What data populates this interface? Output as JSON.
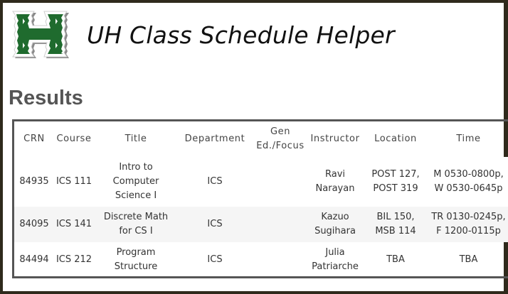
{
  "header": {
    "title": "UH Class Schedule Helper",
    "logo_icon": "hawaii-h-logo",
    "logo_colors": {
      "primary": "#1f6b2e",
      "outline": "#ffffff",
      "shadow": "#8a8a8a"
    }
  },
  "results": {
    "heading": "Results",
    "columns": [
      "CRN",
      "Course",
      "Title",
      "Department",
      "Gen Ed./Focus",
      "Instructor",
      "Location",
      "Time"
    ],
    "rows": [
      {
        "crn": "84935",
        "course": "ICS 111",
        "title_lines": [
          "Intro to",
          "Computer",
          "Science I"
        ],
        "department": "ICS",
        "gen_ed": "",
        "instructor_lines": [
          "Ravi",
          "Narayan"
        ],
        "location_lines": [
          "POST 127,",
          "POST 319"
        ],
        "time_lines": [
          "M 0530-0800p,",
          "W 0530-0645p"
        ]
      },
      {
        "crn": "84095",
        "course": "ICS 141",
        "title_lines": [
          "Discrete Math",
          "for CS I"
        ],
        "department": "ICS",
        "gen_ed": "",
        "instructor_lines": [
          "Kazuo",
          "Sugihara"
        ],
        "location_lines": [
          "BIL 150,",
          "MSB 114"
        ],
        "time_lines": [
          "TR 0130-0245p,",
          "F 1200-0115p"
        ]
      },
      {
        "crn": "84494",
        "course": "ICS 212",
        "title_lines": [
          "Program",
          "Structure"
        ],
        "department": "ICS",
        "gen_ed": "",
        "instructor_lines": [
          "Julia",
          "Patriarche"
        ],
        "location_lines": [
          "TBA"
        ],
        "time_lines": [
          "TBA"
        ]
      }
    ]
  }
}
